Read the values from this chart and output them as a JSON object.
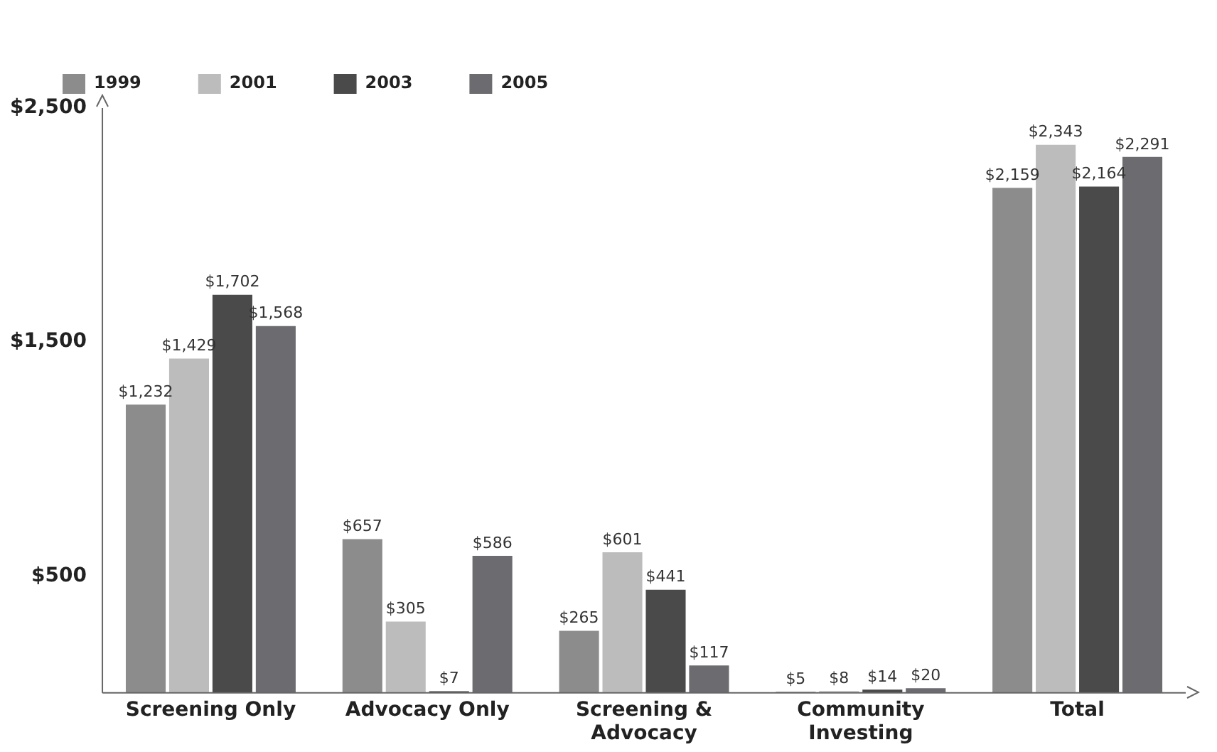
{
  "chart_data": {
    "type": "bar",
    "categories": [
      "Screening Only",
      "Advocacy Only",
      "Screening & Advocacy",
      "Community Investing",
      "Total"
    ],
    "series": [
      {
        "name": "1999",
        "color": "#8c8c8c",
        "values": [
          1232,
          657,
          265,
          5,
          2159
        ],
        "value_labels": [
          "$1,232",
          "$657",
          "$265",
          "$5",
          "$2,159"
        ]
      },
      {
        "name": "2001",
        "color": "#bcbcbc",
        "values": [
          1429,
          305,
          601,
          8,
          2343
        ],
        "value_labels": [
          "$1,429",
          "$305",
          "$601",
          "$8",
          "$2,343"
        ]
      },
      {
        "name": "2003",
        "color": "#4a4a4a",
        "values": [
          1702,
          7,
          441,
          14,
          2164
        ],
        "value_labels": [
          "$1,702",
          "$7",
          "$441",
          "$14",
          "$2,164"
        ]
      },
      {
        "name": "2005",
        "color": "#6b6b70",
        "values": [
          1568,
          586,
          117,
          20,
          2291
        ],
        "value_labels": [
          "$1,568",
          "$586",
          "$117",
          "$20",
          "$2,291"
        ]
      }
    ],
    "ylim": [
      0,
      2500
    ],
    "yticks": [
      {
        "value": 500,
        "label": "$500"
      },
      {
        "value": 1500,
        "label": "$1,500"
      },
      {
        "value": 2500,
        "label": "$2,500"
      }
    ],
    "grid": false,
    "legend": "top left"
  }
}
